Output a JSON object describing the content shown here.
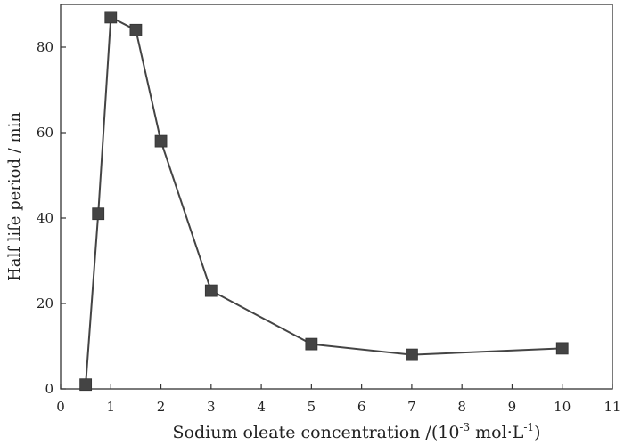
{
  "chart_data": {
    "type": "line",
    "title": "",
    "xlabel_parts": {
      "pre": "Sodium oleate concentration /(10",
      "sup1": "-3",
      "mid": " mol·L",
      "sup2": "-1",
      "post": ")"
    },
    "ylabel": "Half life period  / min",
    "xlim": [
      0,
      11
    ],
    "ylim": [
      0,
      90
    ],
    "xticks": [
      0,
      1,
      2,
      3,
      4,
      5,
      6,
      7,
      8,
      9,
      10,
      11
    ],
    "yticks": [
      0,
      20,
      40,
      60,
      80
    ],
    "grid": false,
    "legend": "none",
    "series": [
      {
        "x": [
          0.5,
          0.75,
          1.0,
          1.5,
          2.0,
          3.0,
          5.0,
          7.0,
          10.0
        ],
        "y": [
          1,
          41,
          87,
          84,
          58,
          23,
          10.5,
          8,
          9.5
        ],
        "color": "#444444",
        "marker": "square"
      }
    ]
  }
}
